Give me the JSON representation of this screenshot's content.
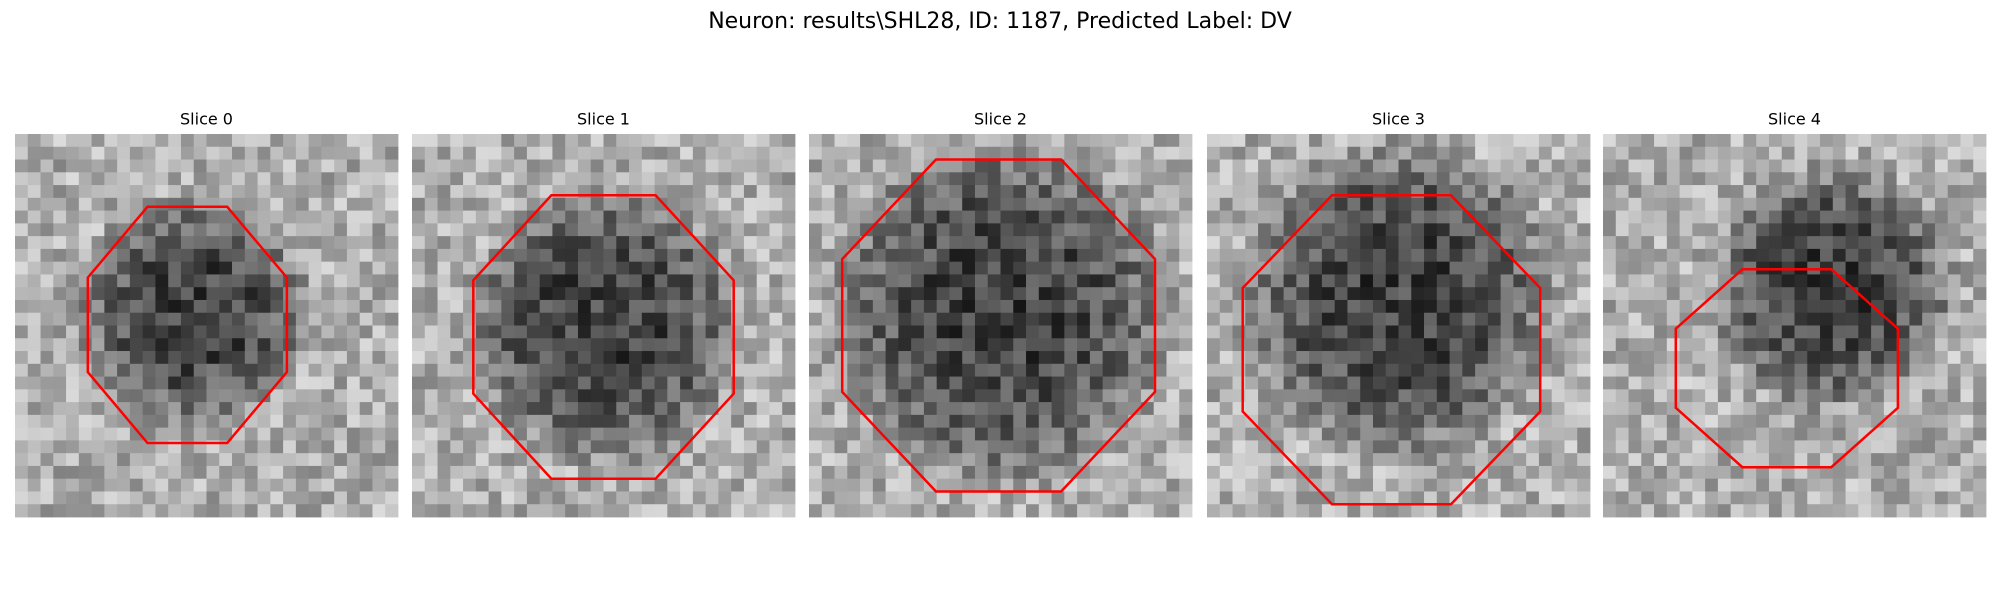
{
  "title": "Neuron: results\\SHL28, ID: 1187, Predicted Label: DV",
  "panels": [
    {
      "title": "Slice 0"
    },
    {
      "title": "Slice 1"
    },
    {
      "title": "Slice 2"
    },
    {
      "title": "Slice 3"
    },
    {
      "title": "Slice 4"
    }
  ]
}
